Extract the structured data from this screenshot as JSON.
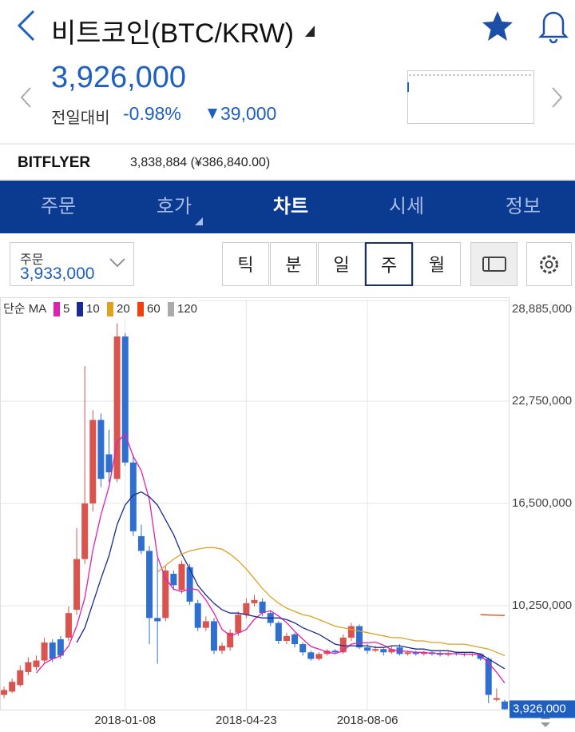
{
  "header": {
    "title": "비트코인(BTC/KRW)"
  },
  "price": {
    "value": "3,926,000",
    "change_label": "전일대비",
    "change_rate": "-0.98%",
    "change_amount": "39,000"
  },
  "exchange": {
    "name": "BITFLYER",
    "quote": "3,838,884 (¥386,840.00)"
  },
  "tabs": [
    "주문",
    "호가",
    "차트",
    "시세",
    "정보"
  ],
  "order": {
    "label": "주문",
    "price": "3,933,000"
  },
  "periods": [
    "틱",
    "분",
    "일",
    "주",
    "월"
  ],
  "chart_data": {
    "type": "candlestick",
    "legend_title": "단순 MA",
    "up_color": "#d9534f",
    "down_color": "#2f6fd0",
    "categories": [
      null,
      null,
      null,
      null,
      null,
      null,
      null,
      null,
      null,
      null,
      null,
      null,
      null,
      null,
      null,
      "2018-01-08",
      null,
      null,
      null,
      null,
      null,
      null,
      null,
      null,
      null,
      null,
      null,
      null,
      null,
      null,
      "2018-04-23",
      null,
      null,
      null,
      null,
      null,
      null,
      null,
      null,
      null,
      null,
      null,
      null,
      null,
      null,
      "2018-08-06",
      null,
      null,
      null,
      null,
      null,
      null,
      null,
      null,
      null,
      null,
      null,
      null,
      null,
      null,
      null,
      null,
      null
    ],
    "open": [
      4800000,
      5000000,
      5400000,
      6200000,
      6500000,
      6900000,
      8000000,
      8200000,
      8300000,
      10000000,
      13100000,
      16500000,
      21600000,
      19500000,
      18000000,
      26700000,
      19000000,
      14500000,
      13600000,
      9500000,
      9500000,
      12200000,
      11200000,
      12600000,
      10400000,
      8900000,
      9300000,
      7500000,
      7700000,
      8600000,
      9700000,
      10400000,
      10500000,
      9800000,
      9200000,
      8100000,
      8500000,
      7900000,
      7400000,
      7000000,
      7300000,
      7500000,
      7400000,
      8300000,
      9000000,
      7700000,
      7500000,
      7600000,
      7400000,
      7700000,
      7300000,
      7400000,
      7300000,
      7400000,
      7350000,
      7250000,
      7350000,
      7300000,
      7250000,
      7300000,
      7000000,
      4500000,
      4400000
    ],
    "high": [
      5300000,
      5800000,
      6600000,
      7100000,
      7200000,
      8300000,
      8200000,
      8400000,
      10200000,
      15000000,
      24900000,
      22200000,
      22000000,
      21000000,
      27500000,
      26900000,
      19500000,
      15200000,
      13900000,
      13100000,
      12700000,
      12400000,
      13000000,
      12800000,
      10600000,
      9600000,
      9500000,
      8000000,
      8800000,
      9900000,
      10700000,
      10900000,
      10700000,
      9900000,
      9300000,
      8600000,
      8600000,
      8000000,
      7500000,
      7400000,
      7600000,
      7600000,
      8500000,
      9200000,
      9100000,
      7900000,
      7800000,
      7700000,
      7800000,
      7900000,
      7500000,
      7500000,
      7500000,
      7500000,
      7450000,
      7450000,
      7450000,
      7400000,
      7350000,
      7350000,
      7100000,
      5200000,
      4500000
    ],
    "low": [
      4600000,
      4900000,
      5300000,
      6000000,
      6300000,
      6700000,
      6800000,
      7000000,
      8100000,
      9700000,
      12800000,
      16000000,
      17500000,
      17800000,
      17800000,
      18800000,
      14500000,
      13400000,
      7900000,
      6700000,
      9300000,
      11200000,
      11000000,
      10300000,
      8700000,
      8700000,
      7300000,
      7300000,
      7500000,
      8400000,
      9500000,
      10200000,
      9600000,
      9000000,
      7900000,
      7900000,
      7700000,
      7200000,
      6900000,
      6900000,
      7200000,
      7300000,
      7300000,
      8100000,
      7600000,
      7300000,
      7400000,
      7200000,
      7300000,
      7200000,
      7200000,
      7200000,
      7200000,
      7200000,
      7150000,
      7150000,
      7200000,
      7150000,
      7150000,
      6900000,
      4300000,
      4400000,
      3900000
    ],
    "close": [
      5100000,
      5600000,
      6300000,
      6800000,
      6900000,
      8000000,
      7000000,
      7200000,
      9800000,
      13100000,
      16500000,
      21600000,
      18000000,
      18400000,
      26700000,
      19000000,
      14800000,
      13600000,
      9500000,
      9300000,
      12400000,
      11500000,
      12800000,
      10500000,
      8900000,
      9300000,
      7500000,
      7800000,
      8600000,
      9700000,
      10400000,
      10600000,
      9800000,
      9200000,
      8100000,
      8400000,
      7900000,
      7400000,
      7000000,
      7300000,
      7500000,
      7400000,
      8300000,
      9000000,
      7700000,
      7500000,
      7600000,
      7400000,
      7600000,
      7300000,
      7400000,
      7300000,
      7400000,
      7300000,
      7250000,
      7350000,
      7300000,
      7250000,
      7300000,
      7000000,
      4800000,
      4600000,
      3926000
    ],
    "series": [
      {
        "name": "5",
        "color": "#e020b0",
        "values": [
          null,
          null,
          null,
          null,
          6140000,
          6720000,
          7000000,
          7180000,
          7780000,
          9020000,
          10720000,
          13640000,
          15800000,
          17520000,
          20240000,
          20740000,
          19380000,
          18500000,
          16720000,
          13240000,
          11920000,
          11260000,
          11100000,
          11300000,
          11220000,
          10600000,
          9800000,
          8800000,
          8420000,
          8580000,
          8800000,
          9420000,
          9820000,
          9940000,
          9620000,
          9220000,
          8680000,
          8200000,
          7760000,
          7600000,
          7420000,
          7320000,
          7500000,
          7900000,
          7980000,
          7980000,
          8020000,
          7840000,
          7560000,
          7480000,
          7460000,
          7400000,
          7400000,
          7340000,
          7330000,
          7320000,
          7320000,
          7290000,
          7290000,
          7240000,
          6730000,
          6190000,
          5530000
        ]
      },
      {
        "name": "10",
        "color": "#1a2a8f",
        "values": [
          null,
          null,
          null,
          null,
          null,
          null,
          null,
          null,
          null,
          8000000,
          8900000,
          10400000,
          11900000,
          13300000,
          15200000,
          16400000,
          17000000,
          17200000,
          16900000,
          16400000,
          15500000,
          14600000,
          13400000,
          12500000,
          11500000,
          10900000,
          10400000,
          10000000,
          9800000,
          9800000,
          9700000,
          9600000,
          9500000,
          9500000,
          9500000,
          9400000,
          9200000,
          8900000,
          8700000,
          8500000,
          8200000,
          7900000,
          7800000,
          7800000,
          7800000,
          7800000,
          7700000,
          7700000,
          7800000,
          7800000,
          7700000,
          7600000,
          7600000,
          7500000,
          7500000,
          7500000,
          7400000,
          7400000,
          7400000,
          7300000,
          7000000,
          6700000,
          6400000
        ]
      },
      {
        "name": "20",
        "color": "#e0a020",
        "values": [
          null,
          null,
          null,
          null,
          null,
          null,
          null,
          null,
          null,
          null,
          null,
          null,
          null,
          null,
          null,
          null,
          null,
          null,
          null,
          12300000,
          12700000,
          13100000,
          13400000,
          13600000,
          13700000,
          13800000,
          13800000,
          13700000,
          13400000,
          13000000,
          12500000,
          11900000,
          11300000,
          10800000,
          10400000,
          10100000,
          9900000,
          9700000,
          9600000,
          9400000,
          9200000,
          9000000,
          8900000,
          8800000,
          8700000,
          8600000,
          8500000,
          8400000,
          8300000,
          8300000,
          8200000,
          8100000,
          8100000,
          8000000,
          8000000,
          7900000,
          7900000,
          7900000,
          7800000,
          7700000,
          7600000,
          7400000,
          7200000
        ]
      },
      {
        "name": "60",
        "color": "#f04010",
        "values": [
          null,
          null,
          null,
          null,
          null,
          null,
          null,
          null,
          null,
          null,
          null,
          null,
          null,
          null,
          null,
          null,
          null,
          null,
          null,
          null,
          null,
          null,
          null,
          null,
          null,
          null,
          null,
          null,
          null,
          null,
          null,
          null,
          null,
          null,
          null,
          null,
          null,
          null,
          null,
          null,
          null,
          null,
          null,
          null,
          null,
          null,
          null,
          null,
          null,
          null,
          null,
          null,
          null,
          null,
          null,
          null,
          null,
          null,
          null,
          9700000,
          9680000,
          9660000,
          9650000
        ]
      },
      {
        "name": "120",
        "color": "#aaaaaa",
        "values": [
          null,
          null,
          null,
          null,
          null,
          null,
          null,
          null,
          null,
          null,
          null,
          null,
          null,
          null,
          null,
          null,
          null,
          null,
          null,
          null,
          null,
          null,
          null,
          null,
          null,
          null,
          null,
          null,
          null,
          null,
          null,
          null,
          null,
          null,
          null,
          null,
          null,
          null,
          null,
          null,
          null,
          null,
          null,
          null,
          null,
          null,
          null,
          null,
          null,
          null,
          null,
          null,
          null,
          null,
          null,
          null,
          null,
          null,
          null,
          null,
          null,
          null,
          null
        ]
      }
    ],
    "ylim": [
      3900000,
      28950000
    ],
    "yticks": [
      {
        "value": 10250000,
        "label": "10,250,000"
      },
      {
        "value": 16500000,
        "label": "16,500,000"
      },
      {
        "value": 22750000,
        "label": "22,750,000"
      },
      {
        "value": 28885000,
        "label": "28,885,000"
      }
    ],
    "current_price": {
      "value": 3926000,
      "label": "3,926,000"
    },
    "grid": true
  }
}
